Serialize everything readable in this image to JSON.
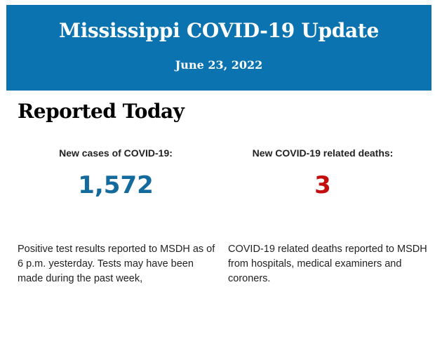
{
  "header": {
    "title": "Mississippi COVID-19 Update",
    "date": "June 23, 2022"
  },
  "section": {
    "heading": "Reported Today"
  },
  "cases": {
    "label": "New cases of COVID-19:",
    "value": "1,572",
    "color": "#136a9c",
    "description": "Positive test results reported to MSDH as of 6 p.m. yesterday. Tests may have been made during the past week,"
  },
  "deaths": {
    "label": "New COVID-19 related deaths:",
    "value": "3",
    "color": "#c40d0d",
    "description": "COVID-19 related deaths reported to MSDH from hospitals, medical examiners and coroners."
  },
  "colors": {
    "banner": "#0b74b0"
  }
}
